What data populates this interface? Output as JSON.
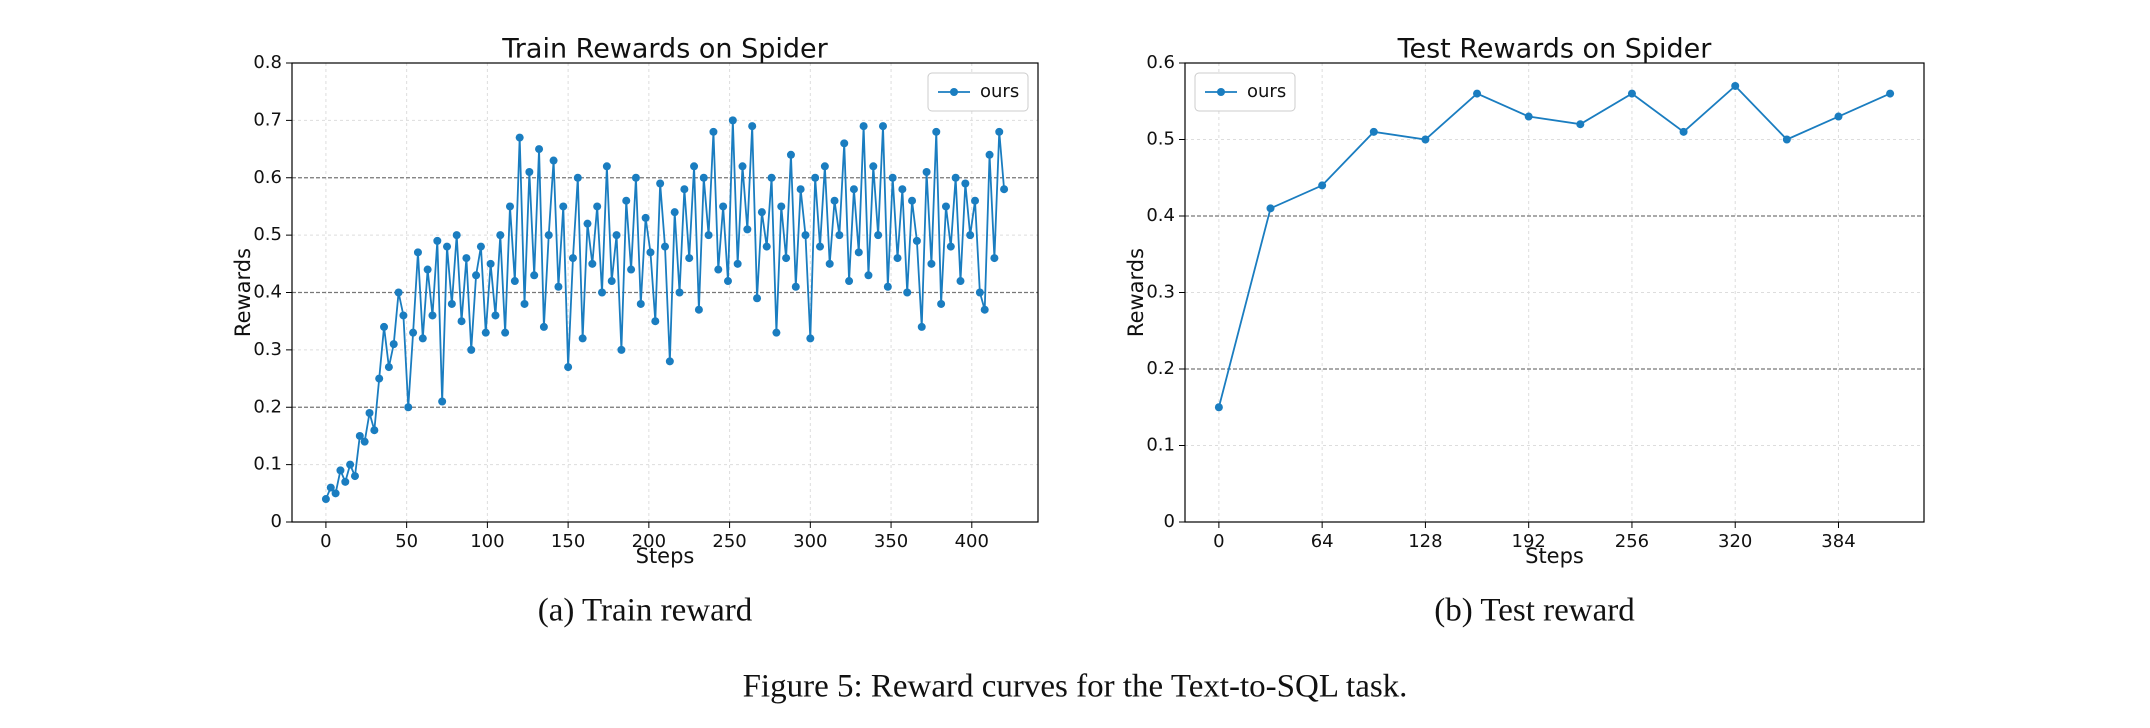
{
  "chart_data": [
    {
      "type": "line",
      "title": "Train Rewards on Spider",
      "xlabel": "Steps",
      "ylabel": "Rewards",
      "subcaption": "(a) Train reward",
      "x": [
        0,
        3,
        6,
        9,
        12,
        15,
        18,
        21,
        24,
        27,
        30,
        33,
        36,
        39,
        42,
        45,
        48,
        51,
        54,
        57,
        60,
        63,
        66,
        69,
        72,
        75,
        78,
        81,
        84,
        87,
        90,
        93,
        96,
        99,
        102,
        105,
        108,
        111,
        114,
        117,
        120,
        123,
        126,
        129,
        132,
        135,
        138,
        141,
        144,
        147,
        150,
        153,
        156,
        159,
        162,
        165,
        168,
        171,
        174,
        177,
        180,
        183,
        186,
        189,
        192,
        195,
        198,
        201,
        204,
        207,
        210,
        213,
        216,
        219,
        222,
        225,
        228,
        231,
        234,
        237,
        240,
        243,
        246,
        249,
        252,
        255,
        258,
        261,
        264,
        267,
        270,
        273,
        276,
        279,
        282,
        285,
        288,
        291,
        294,
        297,
        300,
        303,
        306,
        309,
        312,
        315,
        318,
        321,
        324,
        327,
        330,
        333,
        336,
        339,
        342,
        345,
        348,
        351,
        354,
        357,
        360,
        363,
        366,
        369,
        372,
        375,
        378,
        381,
        384,
        387,
        390,
        393,
        396,
        399,
        402,
        405,
        408,
        411,
        414,
        417,
        420
      ],
      "series": [
        {
          "name": "ours",
          "color": "#1a7dc0",
          "values": [
            0.04,
            0.06,
            0.05,
            0.09,
            0.07,
            0.1,
            0.08,
            0.15,
            0.14,
            0.19,
            0.16,
            0.25,
            0.34,
            0.27,
            0.31,
            0.4,
            0.36,
            0.2,
            0.33,
            0.47,
            0.32,
            0.44,
            0.36,
            0.49,
            0.21,
            0.48,
            0.38,
            0.5,
            0.35,
            0.46,
            0.3,
            0.43,
            0.48,
            0.33,
            0.45,
            0.36,
            0.5,
            0.33,
            0.55,
            0.42,
            0.67,
            0.38,
            0.61,
            0.43,
            0.65,
            0.34,
            0.5,
            0.63,
            0.41,
            0.55,
            0.27,
            0.46,
            0.6,
            0.32,
            0.52,
            0.45,
            0.55,
            0.4,
            0.62,
            0.42,
            0.5,
            0.3,
            0.56,
            0.44,
            0.6,
            0.38,
            0.53,
            0.47,
            0.35,
            0.59,
            0.48,
            0.28,
            0.54,
            0.4,
            0.58,
            0.46,
            0.62,
            0.37,
            0.6,
            0.5,
            0.68,
            0.44,
            0.55,
            0.42,
            0.7,
            0.45,
            0.62,
            0.51,
            0.69,
            0.39,
            0.54,
            0.48,
            0.6,
            0.33,
            0.55,
            0.46,
            0.64,
            0.41,
            0.58,
            0.5,
            0.32,
            0.6,
            0.48,
            0.62,
            0.45,
            0.56,
            0.5,
            0.66,
            0.42,
            0.58,
            0.47,
            0.69,
            0.43,
            0.62,
            0.5,
            0.69,
            0.41,
            0.6,
            0.46,
            0.58,
            0.4,
            0.56,
            0.49,
            0.34,
            0.61,
            0.45,
            0.68,
            0.38,
            0.55,
            0.48,
            0.6,
            0.42,
            0.59,
            0.5,
            0.56,
            0.4,
            0.37,
            0.64,
            0.46,
            0.68,
            0.58
          ]
        }
      ],
      "xlim": [
        -21,
        441
      ],
      "xticks": [
        0,
        50,
        100,
        150,
        200,
        250,
        300,
        350,
        400
      ],
      "ylim": [
        0,
        0.8
      ],
      "yticks": [
        0.0,
        0.1,
        0.2,
        0.3,
        0.4,
        0.5,
        0.6,
        0.7,
        0.8
      ],
      "hlines": [
        0.2,
        0.4,
        0.6
      ],
      "grid": true,
      "legend": "upper right"
    },
    {
      "type": "line",
      "title": "Test Rewards on Spider",
      "xlabel": "Steps",
      "ylabel": "Rewards",
      "subcaption": "(b) Test reward",
      "x": [
        0,
        32,
        64,
        96,
        128,
        160,
        192,
        224,
        256,
        288,
        320,
        352,
        384,
        416
      ],
      "series": [
        {
          "name": "ours",
          "color": "#1a7dc0",
          "values": [
            0.15,
            0.41,
            0.44,
            0.51,
            0.5,
            0.56,
            0.53,
            0.52,
            0.56,
            0.51,
            0.57,
            0.5,
            0.53,
            0.56
          ]
        }
      ],
      "xlim": [
        -21,
        437
      ],
      "xticks": [
        0,
        64,
        128,
        192,
        256,
        320,
        384
      ],
      "ylim": [
        0,
        0.6
      ],
      "yticks": [
        0.0,
        0.1,
        0.2,
        0.3,
        0.4,
        0.5,
        0.6
      ],
      "hlines": [
        0.2,
        0.4
      ],
      "grid": true,
      "legend": "upper left"
    }
  ],
  "figure_caption": "Figure 5: Reward curves for the Text-to-SQL task."
}
